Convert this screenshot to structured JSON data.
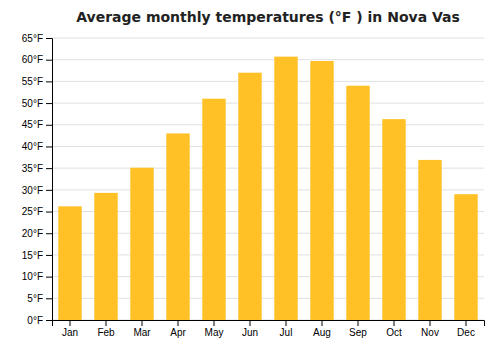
{
  "chart_data": {
    "type": "bar",
    "title": "Average monthly temperatures (°F ) in Nova Vas",
    "categories": [
      "Jan",
      "Feb",
      "Mar",
      "Apr",
      "May",
      "Jun",
      "Jul",
      "Aug",
      "Sep",
      "Oct",
      "Nov",
      "Dec"
    ],
    "values": [
      26.2,
      29.3,
      35.1,
      43.0,
      51.0,
      57.0,
      60.7,
      59.7,
      54.0,
      46.3,
      36.9,
      29.0
    ],
    "color": "#FFC125",
    "ylim": [
      0,
      65
    ],
    "yticks": [
      {
        "value": 0,
        "label": "0°F"
      },
      {
        "value": 5,
        "label": "5°F"
      },
      {
        "value": 10,
        "label": "10°F"
      },
      {
        "value": 15,
        "label": "15°F"
      },
      {
        "value": 20,
        "label": "20°F"
      },
      {
        "value": 25,
        "label": "25°F"
      },
      {
        "value": 30,
        "label": "30°F"
      },
      {
        "value": 35,
        "label": "35°F"
      },
      {
        "value": 40,
        "label": "40°F"
      },
      {
        "value": 45,
        "label": "45°F"
      },
      {
        "value": 50,
        "label": "50°F"
      },
      {
        "value": 55,
        "label": "55°F"
      },
      {
        "value": 60,
        "label": "60°F"
      },
      {
        "value": 65,
        "label": "65°F"
      }
    ],
    "grid": true
  }
}
